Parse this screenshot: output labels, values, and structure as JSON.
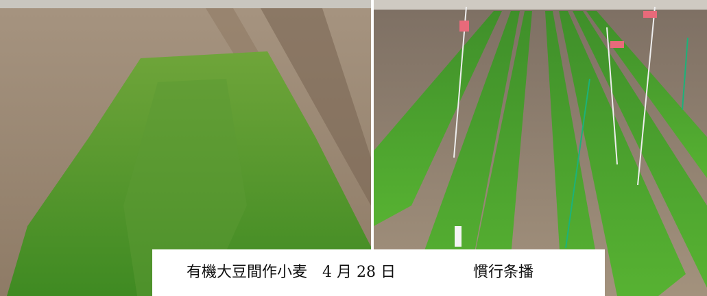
{
  "caption": {
    "left": "有機大豆間作小麦　4 月 28 日",
    "right": "慣行条播"
  }
}
